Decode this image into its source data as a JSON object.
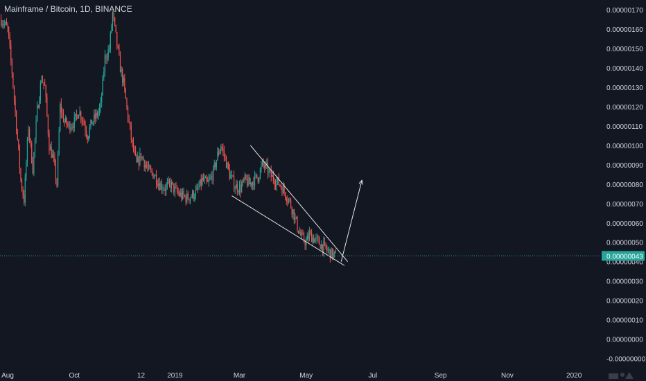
{
  "header": {
    "title": "Mainframe / Bitcoin, 1D, BINANCE"
  },
  "colors": {
    "background": "#131722",
    "up": "#26a69a",
    "down": "#ef5350",
    "axis_text": "#d1d4dc",
    "price_line": "#26a69a",
    "drawings": "#e6e6e6"
  },
  "price_tag": "0.00000043",
  "chart_data": {
    "type": "candlestick",
    "title": "Mainframe / Bitcoin, 1D, BINANCE",
    "xlabel": "",
    "ylabel": "",
    "y_ticks": [
      "0.00000170",
      "0.00000160",
      "0.00000150",
      "0.00000140",
      "0.00000130",
      "0.00000120",
      "0.00000110",
      "0.00000100",
      "0.00000090",
      "0.00000080",
      "0.00000070",
      "0.00000060",
      "0.00000050",
      "0.00000040",
      "0.00000030",
      "0.00000020",
      "0.00000010",
      "0.00000000",
      "-0.00000000"
    ],
    "y_tick_values": [
      170,
      160,
      150,
      140,
      130,
      120,
      110,
      100,
      90,
      80,
      70,
      60,
      50,
      40,
      30,
      20,
      10,
      0,
      -10
    ],
    "ylim": [
      -13,
      175
    ],
    "x_ticks": [
      "Aug",
      "Oct",
      "12",
      "2019",
      "Mar",
      "May",
      "Jul",
      "Sep",
      "Nov",
      "2020"
    ],
    "x_tick_dates": [
      "2018-08-01",
      "2018-10-01",
      "2018-12-01",
      "2019-01-01",
      "2019-03-01",
      "2019-05-01",
      "2019-07-01",
      "2019-09-01",
      "2019-11-01",
      "2020-01-01"
    ],
    "xlim": [
      "2018-07-25",
      "2020-01-25"
    ],
    "last_price": 43,
    "price_unit_note": "values in 1e-8 BTC (e.g. 43 = 0.00000043)",
    "path": [
      [
        "2018-07-26",
        165
      ],
      [
        "2018-08-01",
        160
      ],
      [
        "2018-08-05",
        138
      ],
      [
        "2018-08-09",
        110
      ],
      [
        "2018-08-13",
        82
      ],
      [
        "2018-08-16",
        72
      ],
      [
        "2018-08-20",
        110
      ],
      [
        "2018-08-24",
        88
      ],
      [
        "2018-08-28",
        118
      ],
      [
        "2018-09-01",
        135
      ],
      [
        "2018-09-04",
        130
      ],
      [
        "2018-09-08",
        100
      ],
      [
        "2018-09-12",
        92
      ],
      [
        "2018-09-15",
        80
      ],
      [
        "2018-09-18",
        120
      ],
      [
        "2018-09-22",
        112
      ],
      [
        "2018-09-26",
        110
      ],
      [
        "2018-10-01",
        112
      ],
      [
        "2018-10-05",
        118
      ],
      [
        "2018-10-09",
        113
      ],
      [
        "2018-10-13",
        105
      ],
      [
        "2018-10-17",
        112
      ],
      [
        "2018-10-21",
        115
      ],
      [
        "2018-10-25",
        120
      ],
      [
        "2018-10-29",
        145
      ],
      [
        "2018-11-02",
        150
      ],
      [
        "2018-11-05",
        168
      ],
      [
        "2018-11-09",
        152
      ],
      [
        "2018-11-12",
        140
      ],
      [
        "2018-11-15",
        132
      ],
      [
        "2018-11-19",
        115
      ],
      [
        "2018-11-23",
        100
      ],
      [
        "2018-11-27",
        90
      ],
      [
        "2018-12-01",
        95
      ],
      [
        "2018-12-05",
        90
      ],
      [
        "2018-12-09",
        86
      ],
      [
        "2018-12-13",
        85
      ],
      [
        "2018-12-18",
        80
      ],
      [
        "2018-12-23",
        78
      ],
      [
        "2018-12-28",
        80
      ],
      [
        "2019-01-02",
        76
      ],
      [
        "2019-01-07",
        74
      ],
      [
        "2019-01-12",
        73
      ],
      [
        "2019-01-16",
        74
      ],
      [
        "2019-01-21",
        76
      ],
      [
        "2019-01-26",
        82
      ],
      [
        "2019-01-31",
        80
      ],
      [
        "2019-02-05",
        86
      ],
      [
        "2019-02-09",
        95
      ],
      [
        "2019-02-12",
        100
      ],
      [
        "2019-02-16",
        93
      ],
      [
        "2019-02-20",
        85
      ],
      [
        "2019-02-25",
        79
      ],
      [
        "2019-03-02",
        78
      ],
      [
        "2019-03-06",
        82
      ],
      [
        "2019-03-10",
        80
      ],
      [
        "2019-03-14",
        82
      ],
      [
        "2019-03-18",
        84
      ],
      [
        "2019-03-22",
        90
      ],
      [
        "2019-03-26",
        88
      ],
      [
        "2019-03-30",
        84
      ],
      [
        "2019-04-03",
        82
      ],
      [
        "2019-04-07",
        80
      ],
      [
        "2019-04-11",
        76
      ],
      [
        "2019-04-15",
        72
      ],
      [
        "2019-04-19",
        66
      ],
      [
        "2019-04-23",
        58
      ],
      [
        "2019-04-27",
        52
      ],
      [
        "2019-05-01",
        50
      ],
      [
        "2019-05-04",
        54
      ],
      [
        "2019-05-08",
        52
      ],
      [
        "2019-05-12",
        50
      ],
      [
        "2019-05-16",
        48
      ],
      [
        "2019-05-20",
        46
      ],
      [
        "2019-05-24",
        44
      ],
      [
        "2019-05-28",
        43
      ]
    ],
    "annotations": [
      {
        "type": "line",
        "from": [
          "2019-02-22",
          74
        ],
        "to": [
          "2019-06-05",
          38
        ]
      },
      {
        "type": "line",
        "from": [
          "2019-03-11",
          100
        ],
        "to": [
          "2019-06-08",
          40
        ]
      },
      {
        "type": "arrow",
        "from": [
          "2019-06-02",
          40
        ],
        "to": [
          "2019-06-21",
          82
        ]
      }
    ]
  }
}
